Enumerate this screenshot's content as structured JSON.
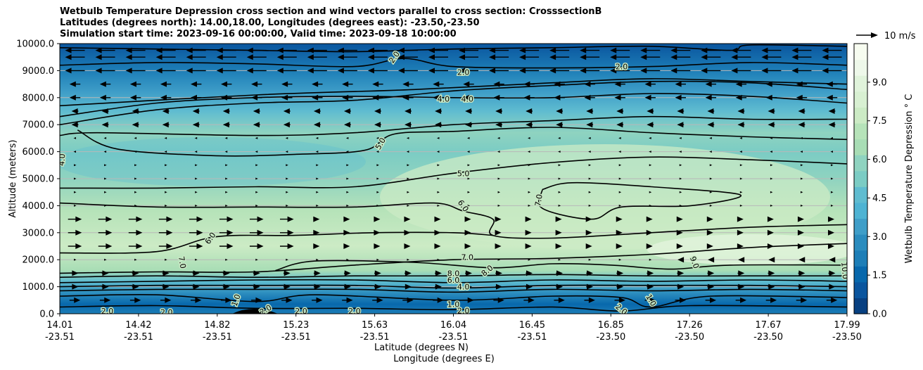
{
  "chart_data": {
    "type": "heatmap",
    "title_lines": [
      "Wetbulb Temperature Depression cross section and wind vectors parallel to cross section: CrosssectionB",
      "Latitudes (degrees north): 14.00,18.00, Longitudes (degrees east): -23.50,-23.50",
      "Simulation start time: 2023-09-16 00:00:00, Valid time: 2023-09-18 10:00:00"
    ],
    "ylabel": "Altitude (meters)",
    "ylim": [
      0,
      10000
    ],
    "yticks": [
      "0.0",
      "1000.0",
      "2000.0",
      "3000.0",
      "4000.0",
      "5000.0",
      "6000.0",
      "7000.0",
      "8000.0",
      "9000.0",
      "10000.0"
    ],
    "yvalues": [
      0,
      1000,
      2000,
      3000,
      4000,
      5000,
      6000,
      7000,
      8000,
      9000,
      10000
    ],
    "xlabel_lat": "Latitude (degrees N)",
    "xlabel_lon": "Longitude (degrees E)",
    "xticks": [
      {
        "lat": "14.01",
        "lon": "-23.51",
        "pos": 0.0
      },
      {
        "lat": "14.42",
        "lon": "-23.51",
        "pos": 0.1
      },
      {
        "lat": "14.82",
        "lon": "-23.51",
        "pos": 0.2
      },
      {
        "lat": "15.23",
        "lon": "-23.51",
        "pos": 0.3
      },
      {
        "lat": "15.63",
        "lon": "-23.51",
        "pos": 0.4
      },
      {
        "lat": "16.04",
        "lon": "-23.51",
        "pos": 0.5
      },
      {
        "lat": "16.45",
        "lon": "-23.51",
        "pos": 0.6
      },
      {
        "lat": "16.85",
        "lon": "-23.50",
        "pos": 0.7
      },
      {
        "lat": "17.26",
        "lon": "-23.50",
        "pos": 0.8
      },
      {
        "lat": "17.67",
        "lon": "-23.50",
        "pos": 0.9
      },
      {
        "lat": "17.99",
        "lon": "-23.50",
        "pos": 1.0
      }
    ],
    "colorbar": {
      "label": "Wetbulb Temperature Depression ° C",
      "range": [
        0,
        10.5
      ],
      "ticks": [
        "0.0",
        "1.5",
        "3.0",
        "4.5",
        "6.0",
        "7.5",
        "9.0"
      ],
      "tickvalues": [
        0,
        1.5,
        3.0,
        4.5,
        6.0,
        7.5,
        9.0
      ],
      "colors": [
        "#084081",
        "#0a559e",
        "#0868ac",
        "#1d7eb7",
        "#2b8cbe",
        "#3f9ec8",
        "#4eb3d3",
        "#5fbcd0",
        "#7bccc4",
        "#8fd3c0",
        "#a8ddb5",
        "#b6e3b9",
        "#ccebc5",
        "#d8f0d2",
        "#e0f3db",
        "#eef8ea",
        "#f7fcf0"
      ]
    },
    "wind_key_label": "10 m/s",
    "contour_labels": [
      {
        "text": "2.0",
        "lat": 15.7,
        "alt": 9500,
        "rot": -55
      },
      {
        "text": "2.0",
        "lat": 16.05,
        "alt": 8950,
        "rot": 0
      },
      {
        "text": "2.0",
        "lat": 16.85,
        "alt": 9150,
        "rot": 0
      },
      {
        "text": "4.0",
        "lat": 15.95,
        "alt": 7950,
        "rot": 0
      },
      {
        "text": "4.0",
        "lat": 16.07,
        "alt": 7950,
        "rot": 0
      },
      {
        "text": "5.0",
        "lat": 15.63,
        "alt": 6300,
        "rot": -60
      },
      {
        "text": "4.0",
        "lat": 14.02,
        "alt": 5700,
        "rot": -85
      },
      {
        "text": "5.0",
        "lat": 16.05,
        "alt": 5200,
        "rot": 0
      },
      {
        "text": "6.0",
        "lat": 16.05,
        "alt": 4000,
        "rot": 55
      },
      {
        "text": "7.0",
        "lat": 16.43,
        "alt": 4200,
        "rot": -80
      },
      {
        "text": "6.0",
        "lat": 14.77,
        "alt": 2800,
        "rot": -55
      },
      {
        "text": "7.0",
        "lat": 14.63,
        "alt": 1900,
        "rot": 80
      },
      {
        "text": "7.0",
        "lat": 16.07,
        "alt": 2100,
        "rot": 0
      },
      {
        "text": "8.0",
        "lat": 16.17,
        "alt": 1600,
        "rot": -40
      },
      {
        "text": "9.0",
        "lat": 17.22,
        "alt": 1900,
        "rot": 70
      },
      {
        "text": "10.0",
        "lat": 17.98,
        "alt": 1600,
        "rot": 85
      },
      {
        "text": "8.0",
        "lat": 16.0,
        "alt": 1500,
        "rot": 0
      },
      {
        "text": "6.0",
        "lat": 16.0,
        "alt": 1250,
        "rot": 0
      },
      {
        "text": "4.0",
        "lat": 16.05,
        "alt": 1000,
        "rot": 0
      },
      {
        "text": "1.0",
        "lat": 16.0,
        "alt": 350,
        "rot": 0
      },
      {
        "text": "2.0",
        "lat": 16.05,
        "alt": 120,
        "rot": 0
      },
      {
        "text": "1.0",
        "lat": 14.9,
        "alt": 500,
        "rot": -70
      },
      {
        "text": "1.0",
        "lat": 17.0,
        "alt": 500,
        "rot": 60
      },
      {
        "text": "2.0",
        "lat": 16.85,
        "alt": 170,
        "rot": 40
      },
      {
        "text": "2.0",
        "lat": 15.5,
        "alt": 100,
        "rot": 0
      },
      {
        "text": "2.0",
        "lat": 15.05,
        "alt": 150,
        "rot": -30
      },
      {
        "text": "2.0",
        "lat": 14.25,
        "alt": 100,
        "rot": 0
      },
      {
        "text": "2.0",
        "lat": 14.55,
        "alt": 60,
        "rot": 0
      },
      {
        "text": "2.0",
        "lat": 15.23,
        "alt": 100,
        "rot": 0
      }
    ],
    "contours": [
      {
        "level": 2.0,
        "points": [
          [
            14.01,
            9200
          ],
          [
            14.5,
            9300
          ],
          [
            15.0,
            9250
          ],
          [
            15.5,
            9150
          ],
          [
            15.75,
            9450
          ],
          [
            16.0,
            9150
          ],
          [
            16.5,
            9100
          ],
          [
            17.0,
            9150
          ],
          [
            17.5,
            9300
          ],
          [
            17.99,
            9200
          ]
        ]
      },
      {
        "level": 2.0,
        "points": [
          [
            14.01,
            9850
          ],
          [
            14.5,
            9800
          ],
          [
            15.0,
            9750
          ],
          [
            15.5,
            9700
          ],
          [
            16.0,
            9800
          ],
          [
            16.5,
            9850
          ],
          [
            17.0,
            9900
          ],
          [
            17.4,
            9750
          ],
          [
            17.5,
            9950
          ],
          [
            17.99,
            9900
          ]
        ]
      },
      {
        "level": 2.0,
        "points": [
          [
            14.01,
            7000
          ],
          [
            14.5,
            7550
          ],
          [
            15.0,
            7800
          ],
          [
            15.5,
            7900
          ],
          [
            16.0,
            8250
          ],
          [
            16.5,
            8450
          ],
          [
            17.0,
            8600
          ],
          [
            17.5,
            8550
          ],
          [
            17.99,
            8300
          ]
        ]
      },
      {
        "level": 4.0,
        "points": [
          [
            14.01,
            7300
          ],
          [
            14.5,
            7800
          ],
          [
            15.0,
            8000
          ],
          [
            15.5,
            8050
          ],
          [
            16.0,
            8000
          ],
          [
            16.5,
            8000
          ],
          [
            17.0,
            8150
          ],
          [
            17.5,
            8050
          ],
          [
            17.99,
            7800
          ]
        ]
      },
      {
        "level": 4.0,
        "points": [
          [
            14.01,
            7700
          ],
          [
            15.0,
            8100
          ],
          [
            15.8,
            8300
          ],
          [
            16.5,
            8550
          ],
          [
            17.0,
            8700
          ],
          [
            17.5,
            8600
          ],
          [
            17.99,
            8500
          ]
        ]
      },
      {
        "level": 4.0,
        "points": [
          [
            14.01,
            6600
          ],
          [
            14.2,
            6700
          ],
          [
            15.0,
            6600
          ],
          [
            15.5,
            6700
          ],
          [
            16.0,
            7000
          ],
          [
            16.5,
            7150
          ],
          [
            17.0,
            7300
          ],
          [
            17.5,
            7200
          ],
          [
            17.99,
            7200
          ]
        ]
      },
      {
        "level": 5.0,
        "points": [
          [
            14.1,
            6800
          ],
          [
            14.3,
            6100
          ],
          [
            14.8,
            5850
          ],
          [
            15.2,
            5900
          ],
          [
            15.55,
            6050
          ],
          [
            15.7,
            6650
          ],
          [
            16.0,
            6750
          ],
          [
            16.5,
            6900
          ],
          [
            17.0,
            6700
          ],
          [
            17.5,
            6550
          ],
          [
            17.99,
            6450
          ]
        ]
      },
      {
        "level": 5.0,
        "points": [
          [
            14.01,
            4650
          ],
          [
            14.5,
            4650
          ],
          [
            15.0,
            4700
          ],
          [
            15.5,
            4700
          ],
          [
            16.0,
            5200
          ],
          [
            16.5,
            5600
          ],
          [
            17.0,
            5800
          ],
          [
            17.5,
            5700
          ],
          [
            17.99,
            5550
          ]
        ]
      },
      {
        "level": 6.0,
        "points": [
          [
            14.01,
            4100
          ],
          [
            14.5,
            3950
          ],
          [
            15.0,
            3950
          ],
          [
            15.5,
            3950
          ],
          [
            15.9,
            4100
          ],
          [
            16.05,
            3800
          ],
          [
            16.2,
            3500
          ],
          [
            16.2,
            2900
          ],
          [
            16.5,
            2800
          ],
          [
            17.0,
            3000
          ],
          [
            17.5,
            3200
          ],
          [
            17.99,
            3300
          ]
        ]
      },
      {
        "level": 6.0,
        "points": [
          [
            14.01,
            2250
          ],
          [
            14.5,
            2300
          ],
          [
            14.8,
            2850
          ],
          [
            15.2,
            2900
          ],
          [
            15.6,
            3000
          ],
          [
            16.0,
            3000
          ],
          [
            16.2,
            2900
          ]
        ]
      },
      {
        "level": 7.0,
        "points": [
          [
            16.45,
            4600
          ],
          [
            16.6,
            4850
          ],
          [
            17.0,
            4700
          ],
          [
            17.45,
            4400
          ],
          [
            17.2,
            4000
          ],
          [
            16.85,
            3950
          ],
          [
            16.7,
            3500
          ],
          [
            16.45,
            3900
          ],
          [
            16.45,
            4600
          ]
        ]
      },
      {
        "level": 7.0,
        "points": [
          [
            14.01,
            1500
          ],
          [
            14.5,
            1550
          ],
          [
            15.0,
            1550
          ],
          [
            15.5,
            1800
          ],
          [
            16.0,
            2000
          ],
          [
            16.5,
            2050
          ],
          [
            17.0,
            2200
          ],
          [
            17.5,
            2450
          ],
          [
            17.99,
            2600
          ]
        ]
      },
      {
        "level": 8.0,
        "points": [
          [
            15.1,
            1600
          ],
          [
            15.3,
            1950
          ],
          [
            15.8,
            1900
          ],
          [
            16.2,
            1700
          ],
          [
            16.5,
            1850
          ],
          [
            16.8,
            1800
          ],
          [
            17.1,
            1650
          ],
          [
            17.4,
            1800
          ],
          [
            17.99,
            1800
          ]
        ]
      },
      {
        "level": 6.0,
        "points": [
          [
            14.01,
            1350
          ],
          [
            14.5,
            1400
          ],
          [
            15.0,
            1350
          ],
          [
            15.5,
            1400
          ],
          [
            16.0,
            1400
          ],
          [
            16.5,
            1450
          ],
          [
            17.0,
            1400
          ],
          [
            17.5,
            1400
          ],
          [
            17.99,
            1400
          ]
        ]
      },
      {
        "level": 4.0,
        "points": [
          [
            14.01,
            1150
          ],
          [
            14.5,
            1200
          ],
          [
            15.0,
            1250
          ],
          [
            15.5,
            1250
          ],
          [
            16.0,
            1150
          ],
          [
            16.5,
            1250
          ],
          [
            17.0,
            1200
          ],
          [
            17.5,
            1250
          ],
          [
            17.99,
            1200
          ]
        ]
      },
      {
        "level": 3.0,
        "points": [
          [
            14.01,
            1000
          ],
          [
            14.5,
            1050
          ],
          [
            15.0,
            1050
          ],
          [
            15.5,
            1050
          ],
          [
            16.0,
            950
          ],
          [
            16.5,
            1050
          ],
          [
            17.0,
            1050
          ],
          [
            17.5,
            1050
          ],
          [
            17.99,
            1000
          ]
        ]
      },
      {
        "level": 2.0,
        "points": [
          [
            14.01,
            850
          ],
          [
            14.5,
            900
          ],
          [
            15.0,
            900
          ],
          [
            15.5,
            900
          ],
          [
            16.0,
            800
          ],
          [
            16.5,
            900
          ],
          [
            17.0,
            850
          ],
          [
            17.5,
            900
          ],
          [
            17.99,
            850
          ]
        ]
      },
      {
        "level": 1.0,
        "points": [
          [
            14.01,
            650
          ],
          [
            14.5,
            700
          ],
          [
            15.0,
            450
          ],
          [
            15.3,
            700
          ],
          [
            16.0,
            500
          ],
          [
            16.5,
            650
          ],
          [
            16.85,
            600
          ],
          [
            17.0,
            250
          ],
          [
            17.3,
            650
          ],
          [
            17.99,
            600
          ]
        ]
      },
      {
        "level": 2.0,
        "points": [
          [
            14.01,
            250
          ],
          [
            14.5,
            300
          ],
          [
            15.0,
            200
          ],
          [
            15.5,
            200
          ],
          [
            16.0,
            150
          ],
          [
            16.5,
            250
          ],
          [
            16.85,
            100
          ],
          [
            17.2,
            300
          ],
          [
            17.99,
            250
          ]
        ]
      }
    ]
  }
}
